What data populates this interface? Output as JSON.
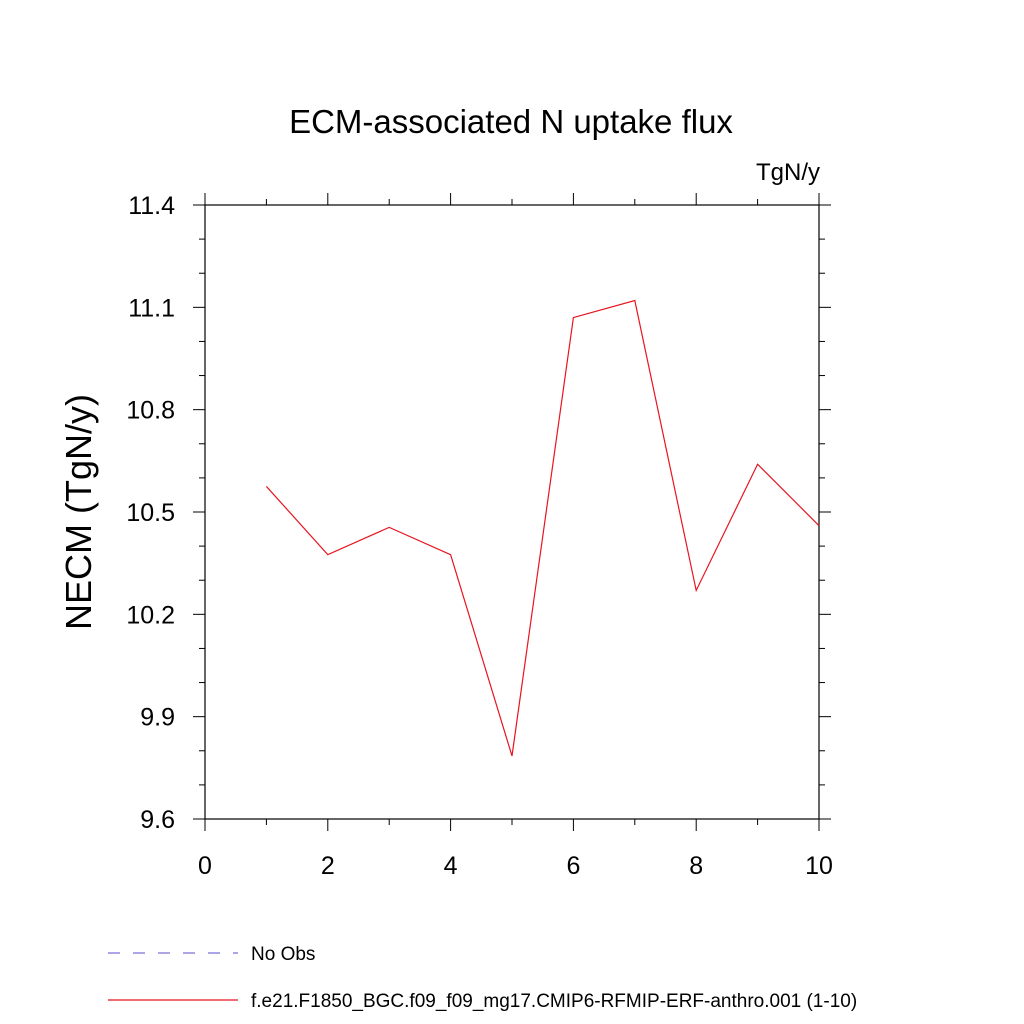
{
  "chart_data": {
    "type": "line",
    "title": "ECM-associated N uptake flux",
    "units": "TgN/y",
    "ylabel": "NECM  (TgN/y)",
    "xlabel": "",
    "xlim": [
      0,
      10
    ],
    "ylim": [
      9.6,
      11.4
    ],
    "x_ticks": [
      "0",
      "2",
      "4",
      "6",
      "8",
      "10"
    ],
    "y_ticks": [
      "9.6",
      "9.9",
      "10.2",
      "10.5",
      "10.8",
      "11.1",
      "11.4"
    ],
    "grid": false,
    "legend_position": "bottom-left",
    "series": [
      {
        "name": "No Obs",
        "color": "#7b6fd6",
        "dash": "dashed",
        "x": [],
        "y": []
      },
      {
        "name": "f.e21.F1850_BGC.f09_f09_mg17.CMIP6-RFMIP-ERF-anthro.001 (1-10)",
        "color": "#e8141e",
        "dash": "solid",
        "x": [
          1,
          2,
          3,
          4,
          5,
          6,
          7,
          8,
          9,
          10
        ],
        "y": [
          10.575,
          10.375,
          10.455,
          10.375,
          9.785,
          11.07,
          11.12,
          10.27,
          10.64,
          10.46
        ]
      }
    ]
  }
}
